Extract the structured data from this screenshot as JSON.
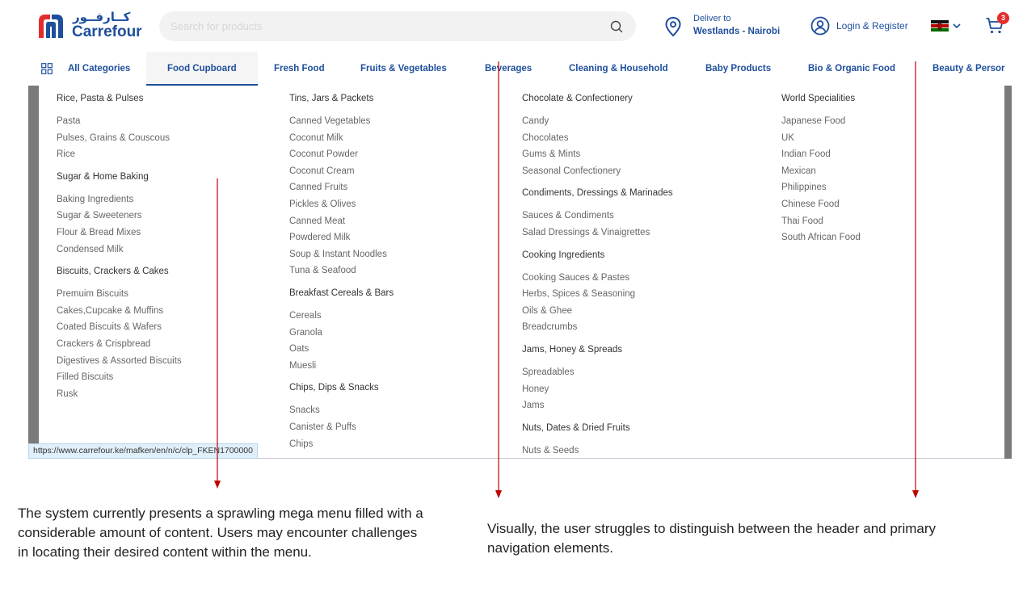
{
  "brand": {
    "arabic": "كــارفــور",
    "name": "Carrefour",
    "red": "#e32d2d",
    "blue": "#1e4f9c"
  },
  "search": {
    "placeholder": "Search for products",
    "icon": "search-icon"
  },
  "delivery": {
    "label": "Deliver to",
    "location": "Westlands - Nairobi",
    "icon": "location-pin-icon"
  },
  "account": {
    "label": "Login & Register",
    "icon": "user-icon"
  },
  "country": {
    "flag": "kenya-flag-icon"
  },
  "cart": {
    "count": "3",
    "icon": "cart-icon"
  },
  "nav": {
    "all_label": "All Categories",
    "items": [
      {
        "label": "Food Cupboard",
        "active": true
      },
      {
        "label": "Fresh Food"
      },
      {
        "label": "Fruits & Vegetables"
      },
      {
        "label": "Beverages"
      },
      {
        "label": "Cleaning & Household"
      },
      {
        "label": "Baby Products"
      },
      {
        "label": "Bio & Organic Food"
      },
      {
        "label": "Beauty & Persor"
      }
    ]
  },
  "mega_menu": {
    "columns": [
      {
        "groups": [
          {
            "title": "Rice, Pasta & Pulses",
            "links": [
              "Pasta",
              "Pulses, Grains & Couscous",
              "Rice"
            ]
          },
          {
            "title": "Sugar & Home Baking",
            "links": [
              "Baking Ingredients",
              "Sugar & Sweeteners",
              "Flour & Bread Mixes",
              "Condensed Milk"
            ]
          },
          {
            "title": "Biscuits, Crackers & Cakes",
            "links": [
              "Premuim Biscuits",
              "Cakes,Cupcake & Muffins",
              "Coated Biscuits & Wafers",
              "Crackers & Crispbread",
              "Digestives & Assorted Biscuits",
              "Filled Biscuits",
              "Rusk"
            ]
          }
        ]
      },
      {
        "groups": [
          {
            "title": "Tins, Jars & Packets",
            "links": [
              "Canned Vegetables",
              "Coconut Milk",
              "Coconut Powder",
              "Coconut Cream",
              "Canned Fruits",
              "Pickles & Olives",
              "Canned Meat",
              "Powdered Milk",
              "Soup & Instant Noodles",
              "Tuna & Seafood"
            ]
          },
          {
            "title": "Breakfast Cereals & Bars",
            "links": [
              "Cereals",
              "Granola",
              "Oats",
              "Muesli"
            ]
          },
          {
            "title": "Chips, Dips & Snacks",
            "links": [
              "Snacks",
              "Canister & Puffs",
              "Chips"
            ]
          }
        ]
      },
      {
        "groups": [
          {
            "title": "Chocolate & Confectionery",
            "links": [
              "Candy",
              "Chocolates",
              "Gums & Mints",
              "Seasonal Confectionery"
            ]
          },
          {
            "title": "Condiments, Dressings & Marinades",
            "links": [
              "Sauces & Condiments",
              "Salad Dressings & Vinaigrettes"
            ]
          },
          {
            "title": "Cooking Ingredients",
            "links": [
              "Cooking Sauces & Pastes",
              "Herbs, Spices & Seasoning",
              "Oils & Ghee",
              "Breadcrumbs"
            ]
          },
          {
            "title": "Jams, Honey & Spreads",
            "links": [
              "Spreadables",
              "Honey",
              "Jams"
            ]
          },
          {
            "title": "Nuts, Dates & Dried Fruits",
            "links": [
              "Nuts & Seeds"
            ]
          }
        ]
      },
      {
        "groups": [
          {
            "title": "World Specialities",
            "links": [
              "Japanese Food",
              "UK",
              "Indian Food",
              "Mexican",
              "Philippines",
              "Chinese Food",
              "Thai Food",
              "South African Food"
            ]
          }
        ]
      }
    ]
  },
  "status_url": "https://www.carrefour.ke/mafken/en/n/c/clp_FKEN1700000",
  "annotations": {
    "left": "The system currently presents a sprawling mega menu filled with a considerable amount of content. Users may encounter challenges in locating their desired content within the menu.",
    "right": "Visually, the user struggles to distinguish between the header and primary navigation elements.",
    "arrow_color": "#c00000"
  }
}
